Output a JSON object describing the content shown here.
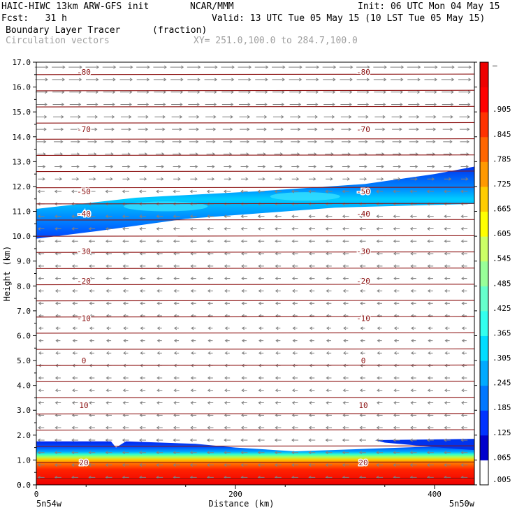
{
  "header": {
    "model": "HAIC-HIWC 13km ARW-GFS init",
    "org": "NCAR/MMM",
    "init": "Init: 06 UTC Mon 04 May 15",
    "fcst": "Fcst:   31 h",
    "valid": "Valid: 13 UTC Tue 05 May 15 (10 LST Tue 05 May 15)",
    "field1": "Boundary Layer Tracer",
    "field1_units": "(fraction)",
    "field2": "Circulation vectors",
    "xy": "XY= 251.0,100.0 to 284.7,100.0"
  },
  "chart_data": {
    "type": "heatmap",
    "title": "Boundary Layer Tracer (fraction)",
    "xlabel": "Distance (km)",
    "ylabel": "Height (km)",
    "xlim": [
      0,
      440
    ],
    "ylim": [
      0,
      17
    ],
    "x_ticks": [
      {
        "value": 0,
        "label": "0"
      },
      {
        "value": 200,
        "label": "200"
      },
      {
        "value": 400,
        "label": "400"
      }
    ],
    "x_end_labels": {
      "left": "5n54w",
      "right": "5n50w"
    },
    "y_ticks": [
      {
        "value": 0,
        "label": "0.0"
      },
      {
        "value": 1,
        "label": "1.0"
      },
      {
        "value": 2,
        "label": "2.0"
      },
      {
        "value": 3,
        "label": "3.0"
      },
      {
        "value": 4,
        "label": "4.0"
      },
      {
        "value": 5,
        "label": "5.0"
      },
      {
        "value": 6,
        "label": "6.0"
      },
      {
        "value": 7,
        "label": "7.0"
      },
      {
        "value": 8,
        "label": "8.0"
      },
      {
        "value": 9,
        "label": "9.0"
      },
      {
        "value": 10,
        "label": "10.0"
      },
      {
        "value": 11,
        "label": "11.0"
      },
      {
        "value": 12,
        "label": "12.0"
      },
      {
        "value": 13,
        "label": "13.0"
      },
      {
        "value": 14,
        "label": "14.0"
      },
      {
        "value": 15,
        "label": "15.0"
      },
      {
        "value": 16,
        "label": "16.0"
      },
      {
        "value": 17,
        "label": "17.0"
      }
    ],
    "colorbar": {
      "colors": [
        "#ffffff",
        "#0000cc",
        "#0033ff",
        "#0077ff",
        "#00aaff",
        "#00ddff",
        "#33ffee",
        "#66ffcc",
        "#99ff99",
        "#ccff66",
        "#ffff00",
        "#ffcc00",
        "#ff9900",
        "#ff6600",
        "#ff3300",
        "#ff0000",
        "#ee0000"
      ],
      "labels": [
        {
          "value": 0.005,
          "label": ".005"
        },
        {
          "value": 0.065,
          "label": ".065"
        },
        {
          "value": 0.125,
          "label": ".125"
        },
        {
          "value": 0.185,
          "label": ".185"
        },
        {
          "value": 0.245,
          "label": ".245"
        },
        {
          "value": 0.305,
          "label": ".305"
        },
        {
          "value": 0.365,
          "label": ".365"
        },
        {
          "value": 0.425,
          "label": ".425"
        },
        {
          "value": 0.485,
          "label": ".485"
        },
        {
          "value": 0.545,
          "label": ".545"
        },
        {
          "value": 0.605,
          "label": ".605"
        },
        {
          "value": 0.665,
          "label": ".665"
        },
        {
          "value": 0.725,
          "label": ".725"
        },
        {
          "value": 0.785,
          "label": ".785"
        },
        {
          "value": 0.845,
          "label": ".845"
        },
        {
          "value": 0.905,
          "label": ".905"
        },
        {
          "value": 1.0,
          "label": "–"
        }
      ]
    },
    "tracer_regions": [
      {
        "name": "boundary-layer",
        "bottom_km": 0.0,
        "top_km_left": 1.75,
        "top_km_right": 1.6,
        "x_range_km": [
          0,
          440
        ]
      },
      {
        "name": "upper-layer-plume",
        "bottom_km_left": 9.9,
        "bottom_km_right": 11.3,
        "top_km_left": 11.1,
        "top_km_right": 12.8,
        "x_range_km": [
          0,
          440
        ]
      }
    ],
    "temperature_contours": [
      {
        "value": -80,
        "label": "-80",
        "height_km": 16.6
      },
      {
        "value": -70,
        "label": "-70",
        "height_km": 14.3
      },
      {
        "value": -50,
        "label": "-50",
        "height_km": 11.8
      },
      {
        "value": -40,
        "label": "-40",
        "height_km": 10.9
      },
      {
        "value": -30,
        "label": "-30",
        "height_km": 9.4
      },
      {
        "value": -20,
        "label": "-20",
        "height_km": 8.2
      },
      {
        "value": -10,
        "label": "-10",
        "height_km": 6.7
      },
      {
        "value": 0,
        "label": "0",
        "height_km": 5.0
      },
      {
        "value": 10,
        "label": "10",
        "height_km": 3.2
      },
      {
        "value": 20,
        "label": "20",
        "height_km": 0.9
      }
    ],
    "vectors": {
      "upper_direction": "right",
      "lower_direction": "left",
      "switch_height_km": 12.0
    }
  },
  "colors": {
    "contour": "#8b1010",
    "vector": "#808080",
    "axis": "#000000"
  }
}
